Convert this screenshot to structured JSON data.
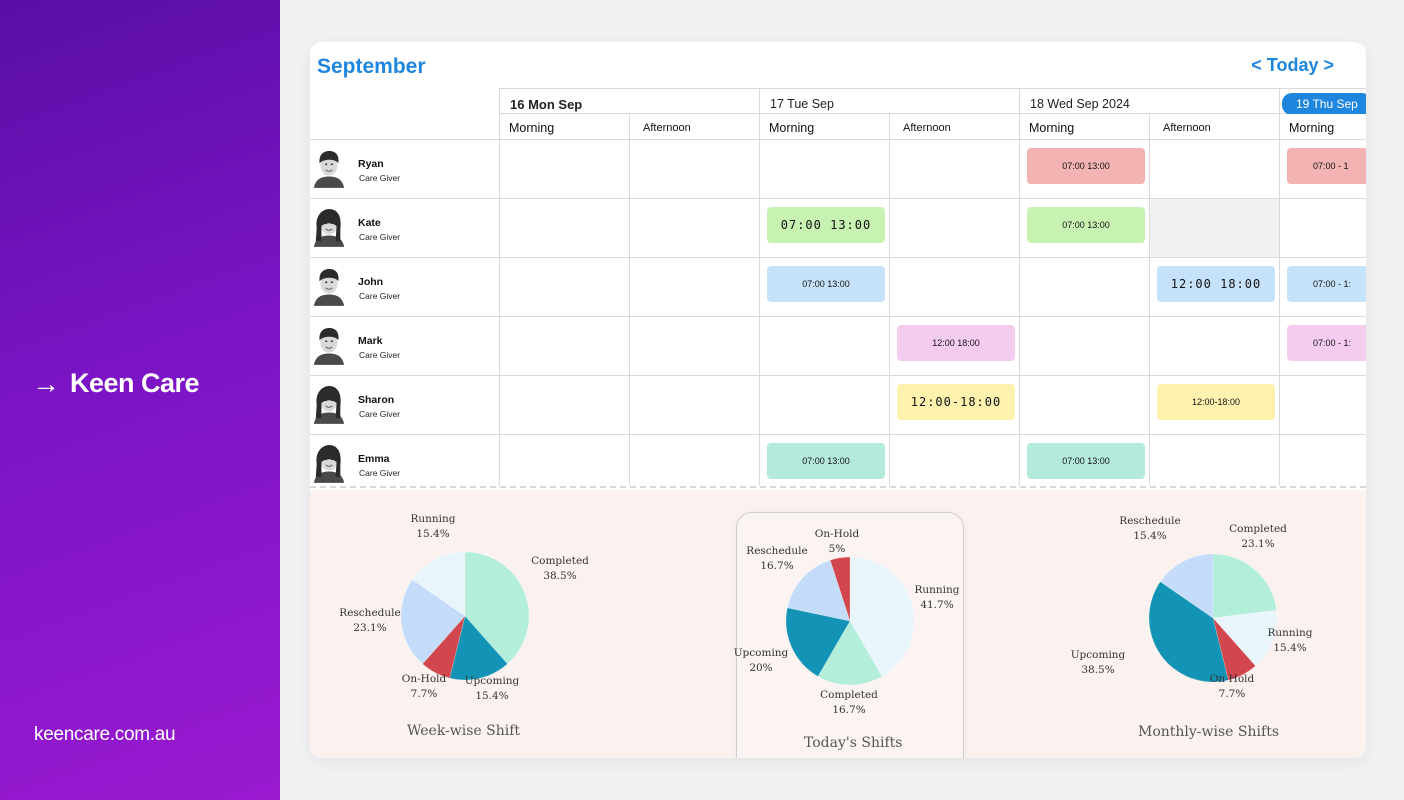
{
  "brand": {
    "arrow": "→",
    "name": "Keen Care",
    "url": "keencare.com.au"
  },
  "calendar": {
    "month": "September",
    "today_label": "< Today >",
    "days": [
      {
        "label": "16 Mon Sep",
        "style": "bold"
      },
      {
        "label": "17 Tue Sep",
        "style": "normal"
      },
      {
        "label": "18 Wed Sep 2024",
        "style": "normal"
      },
      {
        "label": "19 Thu Sep",
        "style": "pill"
      }
    ],
    "shift_headers": [
      "Morning",
      "Afternoon",
      "Morning",
      "Afternoon",
      "Morning",
      "Afternoon",
      "Morning"
    ],
    "staff": [
      {
        "name": "Ryan",
        "role": "Care Giver"
      },
      {
        "name": "Kate",
        "role": "Care Giver"
      },
      {
        "name": "John",
        "role": "Care Giver"
      },
      {
        "name": "Mark",
        "role": "Care Giver"
      },
      {
        "name": "Sharon",
        "role": "Care Giver"
      },
      {
        "name": "Emma",
        "role": "Care Giver"
      }
    ],
    "shifts": [
      {
        "row": 0,
        "col": 4,
        "text": "07:00 13:00",
        "color": "red",
        "size": "small"
      },
      {
        "row": 0,
        "col": 6,
        "text": "07:00 - 1",
        "color": "red",
        "size": "small"
      },
      {
        "row": 1,
        "col": 2,
        "text": "07:00 13:00",
        "color": "green",
        "size": "big"
      },
      {
        "row": 1,
        "col": 4,
        "text": "07:00 13:00",
        "color": "green",
        "size": "small"
      },
      {
        "row": 2,
        "col": 2,
        "text": "07:00 13:00",
        "color": "blue",
        "size": "small"
      },
      {
        "row": 2,
        "col": 5,
        "text": "12:00 18:00",
        "color": "blue",
        "size": "big"
      },
      {
        "row": 2,
        "col": 6,
        "text": "07:00 - 1:",
        "color": "blue",
        "size": "small"
      },
      {
        "row": 3,
        "col": 3,
        "text": "12:00 18:00",
        "color": "pink",
        "size": "small"
      },
      {
        "row": 3,
        "col": 6,
        "text": "07:00 - 1:",
        "color": "pink",
        "size": "small"
      },
      {
        "row": 4,
        "col": 3,
        "text": "12:00-18:00",
        "color": "yellow",
        "size": "big"
      },
      {
        "row": 4,
        "col": 5,
        "text": "12:00-18:00",
        "color": "yellow",
        "size": "small"
      },
      {
        "row": 5,
        "col": 2,
        "text": "07:00 13:00",
        "color": "teal",
        "size": "small"
      },
      {
        "row": 5,
        "col": 4,
        "text": "07:00 13:00",
        "color": "teal",
        "size": "small"
      }
    ],
    "gray_cells": [
      {
        "row": 1,
        "col": 5
      }
    ]
  },
  "colors": {
    "Running": "#e8f6fc",
    "Completed": "#b3eedb",
    "Upcoming": "#1394b6",
    "On-Hold": "#d2474d",
    "Reschedule": "#c4dcfa"
  },
  "chart_data": [
    {
      "type": "pie",
      "title": "Week-wise Shift",
      "slices": [
        {
          "label": "Completed",
          "value": 38.5,
          "text": "38.5%"
        },
        {
          "label": "Upcoming",
          "value": 15.4,
          "text": "15.4%"
        },
        {
          "label": "On-Hold",
          "value": 7.7,
          "text": "7.7%"
        },
        {
          "label": "Reschedule",
          "value": 23.1,
          "text": "23.1%"
        },
        {
          "label": "Running",
          "value": 15.4,
          "text": "15.4%"
        }
      ]
    },
    {
      "type": "pie",
      "title": "Today's Shifts",
      "slices": [
        {
          "label": "Running",
          "value": 41.7,
          "text": "41.7%"
        },
        {
          "label": "Completed",
          "value": 16.7,
          "text": "16.7%"
        },
        {
          "label": "Upcoming",
          "value": 20,
          "text": "20%"
        },
        {
          "label": "Reschedule",
          "value": 16.7,
          "text": "16.7%"
        },
        {
          "label": "On-Hold",
          "value": 5,
          "text": "5%"
        }
      ]
    },
    {
      "type": "pie",
      "title": "Monthly-wise Shifts",
      "slices": [
        {
          "label": "Completed",
          "value": 23.1,
          "text": "23.1%"
        },
        {
          "label": "Running",
          "value": 15.4,
          "text": "15.4%"
        },
        {
          "label": "On-Hold",
          "value": 7.7,
          "text": "7.7%"
        },
        {
          "label": "Upcoming",
          "value": 38.5,
          "text": "38.5%"
        },
        {
          "label": "Reschedule",
          "value": 15.4,
          "text": "15.4%"
        }
      ]
    }
  ]
}
